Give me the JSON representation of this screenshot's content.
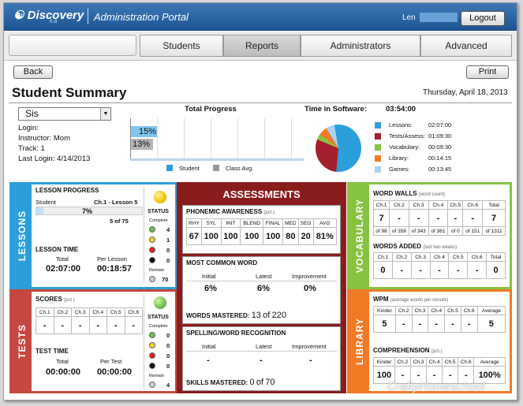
{
  "header": {
    "brand": "Discovery",
    "brand_sub": "K-8",
    "portal": "Administration Portal",
    "user": "Len",
    "logout": "Logout"
  },
  "nav": {
    "tabs": [
      "Students",
      "Reports",
      "Administrators",
      "Advanced"
    ],
    "active": "Reports"
  },
  "toolbar": {
    "back": "Back",
    "print": "Print"
  },
  "page": {
    "title": "Student Summary",
    "date": "Thursday, April 18, 2013"
  },
  "student": {
    "select": "Sis",
    "login": "Login:",
    "instructor": "Instructor: Mom",
    "track": "Track: 1",
    "last_login": "Last Login: 4/14/2013"
  },
  "colors": {
    "blue": "#2b9fdc",
    "maroon": "#8b1c1c",
    "green": "#86c440",
    "red": "#c5473f",
    "orange": "#f07a26"
  },
  "progress": {
    "title": "Total Progress",
    "student": "15%",
    "avg": "13%",
    "student_value": 15,
    "avg_value": 13,
    "legend_student": "Student",
    "legend_avg": "Class Avg."
  },
  "time": {
    "title": "Time in Software:",
    "total": "03:54:00",
    "items": [
      {
        "label": "Lessons:",
        "value": "02:07:00",
        "color": "#2b9fdc"
      },
      {
        "label": "Tests/Assess:",
        "value": "01:09:30",
        "color": "#a51e2d"
      },
      {
        "label": "Vocabulary:",
        "value": "00:09:30",
        "color": "#86c440"
      },
      {
        "label": "Library:",
        "value": "00:14:15",
        "color": "#f07a26"
      },
      {
        "label": "Games:",
        "value": "00:13:45",
        "color": "#a9d3ef"
      }
    ]
  },
  "lessons": {
    "tab": "LESSONS",
    "progress_title": "LESSON PROGRESS",
    "student": "Student",
    "lesson": "Ch.1 - Lesson 5",
    "pct": "7%",
    "pct_value": 7,
    "of": "5 of 75",
    "time_title": "LESSON TIME",
    "total_label": "Total",
    "total": "02:07:00",
    "per_label": "Per Lesson",
    "per": "00:18:57",
    "status": {
      "title": "STATUS",
      "complete": "Complete",
      "remain": "Remain",
      "counts": [
        "4",
        "1",
        "0",
        "0"
      ],
      "remain_count": "70"
    }
  },
  "tests": {
    "tab": "TESTS",
    "scores_title": "SCORES",
    "pct_note": "(pct.)",
    "cols": [
      "Ch.1",
      "Ch.2",
      "Ch.3",
      "Ch.4",
      "Ch.5",
      "Ch.6"
    ],
    "vals": [
      "-",
      "-",
      "-",
      "-",
      "-",
      "-"
    ],
    "time_title": "TEST TIME",
    "total_label": "Total",
    "total": "00:00:00",
    "per_label": "Per Test",
    "per": "00:00:00",
    "status": {
      "title": "STATUS",
      "complete": "Complete",
      "remain": "Remain",
      "counts": [
        "0",
        "0",
        "0",
        "0"
      ],
      "remain_count": "4"
    }
  },
  "assessments": {
    "title": "ASSESSMENTS",
    "phon": {
      "title": "PHONEMIC AWARENESS",
      "note": "(pct.)",
      "cols": [
        "RHY",
        "SYL",
        "INIT",
        "BLEND",
        "FINAL",
        "MED",
        "SEG",
        "AVG"
      ],
      "vals": [
        "67",
        "100",
        "100",
        "100",
        "100",
        "80",
        "20",
        "81%"
      ]
    },
    "common": {
      "title": "MOST COMMON WORD",
      "cols": [
        "Initial",
        "Latest",
        "Improvement"
      ],
      "vals": [
        "6%",
        "6%",
        "0%"
      ],
      "mastered_label": "WORDS MASTERED:",
      "mastered": "13",
      "of": "of",
      "total": "220"
    },
    "spelling": {
      "title": "SPELLING/WORD RECOGNITION",
      "cols": [
        "Initial",
        "Latest",
        "Improvement"
      ],
      "vals": [
        "-",
        "-",
        "-"
      ],
      "mastered_label": "SKILLS MASTERED:",
      "mastered": "0",
      "of": "of",
      "total": "70"
    }
  },
  "vocab": {
    "tab": "VOCABULARY",
    "walls_title": "WORD WALLS",
    "walls_note": "(word count)",
    "cols": [
      "Ch.1",
      "Ch.2",
      "Ch.3",
      "Ch.4",
      "Ch.5",
      "Ch.6",
      "Total"
    ],
    "walls_vals": [
      "7",
      "-",
      "-",
      "-",
      "-",
      "-",
      "7"
    ],
    "walls_of": [
      "of 98",
      "of 358",
      "of 343",
      "of 361",
      "of 0",
      "of 151",
      "of 1311"
    ],
    "added_title": "WORDS ADDED",
    "added_note": "(last two weeks)",
    "added_vals": [
      "0",
      "-",
      "-",
      "-",
      "-",
      "-",
      "0"
    ]
  },
  "library": {
    "tab": "LIBRARY",
    "wpm_title": "WPM",
    "wpm_note": "(average words per minute)",
    "cols": [
      "Kinder",
      "Ch.2",
      "Ch.3",
      "Ch.4",
      "Ch.5",
      "Ch.6",
      "Average"
    ],
    "wpm_vals": [
      "5",
      "-",
      "-",
      "-",
      "-",
      "-",
      "5"
    ],
    "comp_title": "COMPREHENSION",
    "comp_note": "(pct.)",
    "comp_vals": [
      "100",
      "-",
      "-",
      "-",
      "-",
      "-",
      "100%"
    ]
  },
  "watermark": "CraftyHomeschool"
}
